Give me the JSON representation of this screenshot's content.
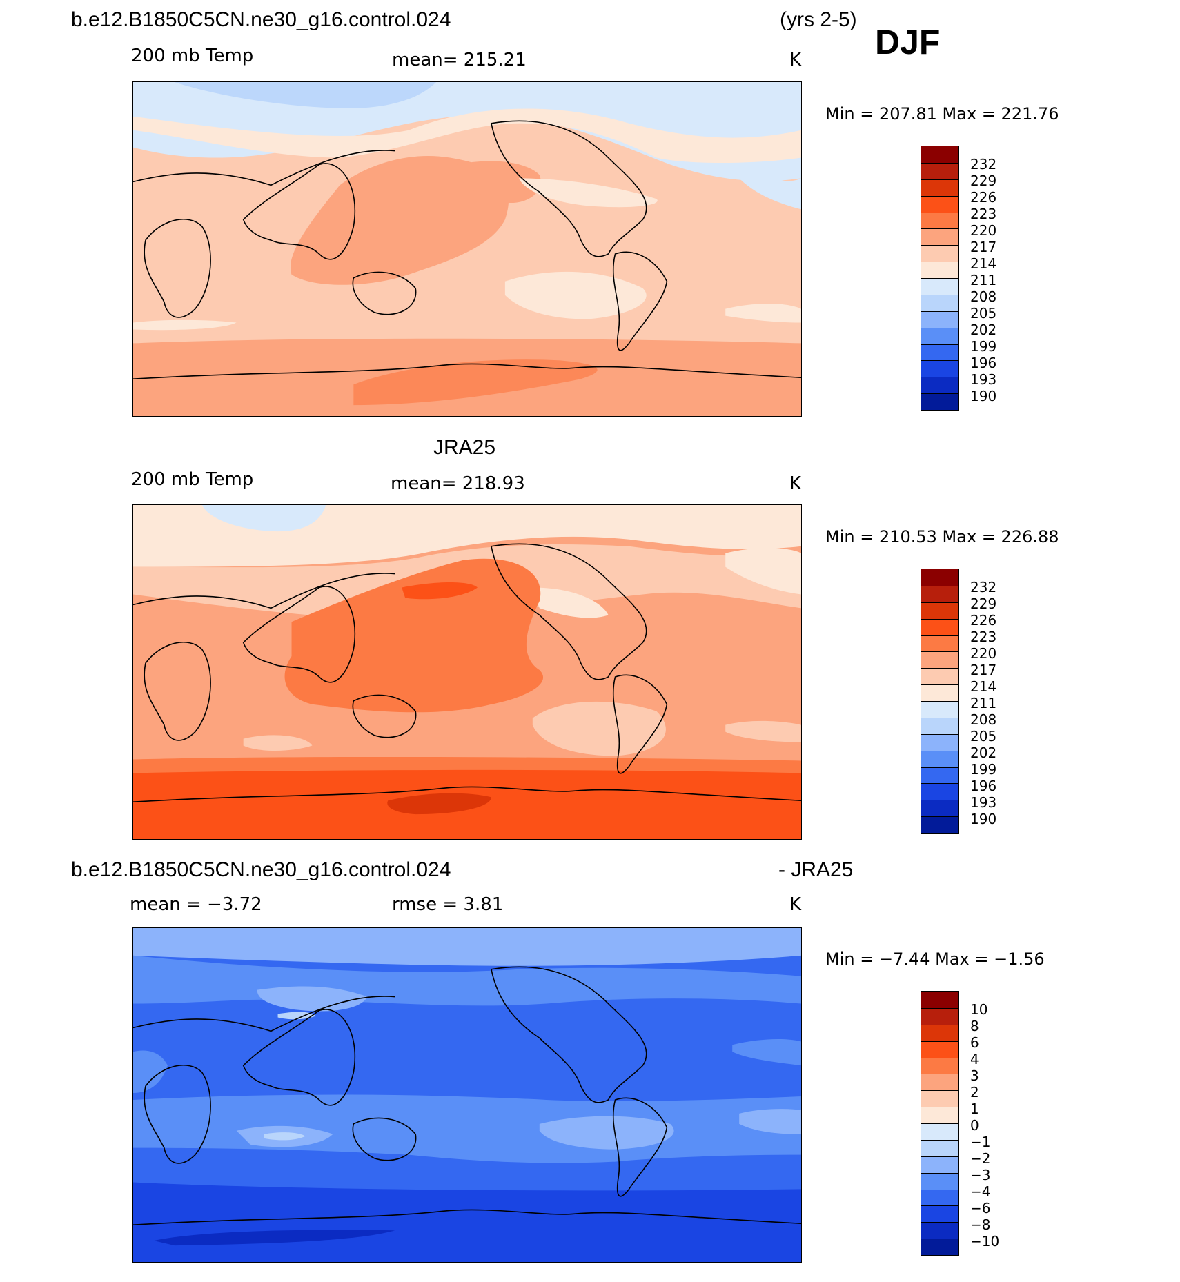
{
  "header": {
    "case_name": "b.e12.B1850C5CN.ne30_g16.control.024",
    "years": "(yrs 2-5)",
    "season": "DJF"
  },
  "panels": [
    {
      "id": "model",
      "title": "",
      "variable": "200 mb Temp",
      "mean_text": "mean=  215.21",
      "units": "K",
      "minmax_text": "Min  =  207.81  Max  =  221.76",
      "colorbar_labels": [
        "232",
        "229",
        "226",
        "223",
        "220",
        "217",
        "214",
        "211",
        "208",
        "205",
        "202",
        "199",
        "196",
        "193",
        "190"
      ]
    },
    {
      "id": "obs",
      "title": "JRA25",
      "variable": "200 mb Temp",
      "mean_text": "mean=  218.93",
      "units": "K",
      "minmax_text": "Min  =  210.53  Max  =  226.88",
      "colorbar_labels": [
        "232",
        "229",
        "226",
        "223",
        "220",
        "217",
        "214",
        "211",
        "208",
        "205",
        "202",
        "199",
        "196",
        "193",
        "190"
      ]
    },
    {
      "id": "diff",
      "title_left": "b.e12.B1850C5CN.ne30_g16.control.024",
      "title_right": "- JRA25",
      "variable": "mean =    −3.72",
      "mean_text": "rmse =     3.81",
      "units": "K",
      "minmax_text": "Min  =    −7.44  Max  =    −1.56",
      "colorbar_labels": [
        "10",
        "8",
        "6",
        "4",
        "3",
        "2",
        "1",
        "0",
        "−1",
        "−2",
        "−3",
        "−4",
        "−6",
        "−8",
        "−10"
      ]
    }
  ],
  "colors": {
    "palette_top_to_bottom": [
      "#8b0000",
      "#b71f0c",
      "#dc3608",
      "#fc5117",
      "#fc7a44",
      "#fca47e",
      "#fdcbb1",
      "#fde8d8",
      "#d8e9fb",
      "#b9d5fb",
      "#8cb3fb",
      "#5a8ff7",
      "#3468f1",
      "#1a45e3",
      "#0b2bc2",
      "#021b99"
    ],
    "land_outline": "#000000"
  }
}
